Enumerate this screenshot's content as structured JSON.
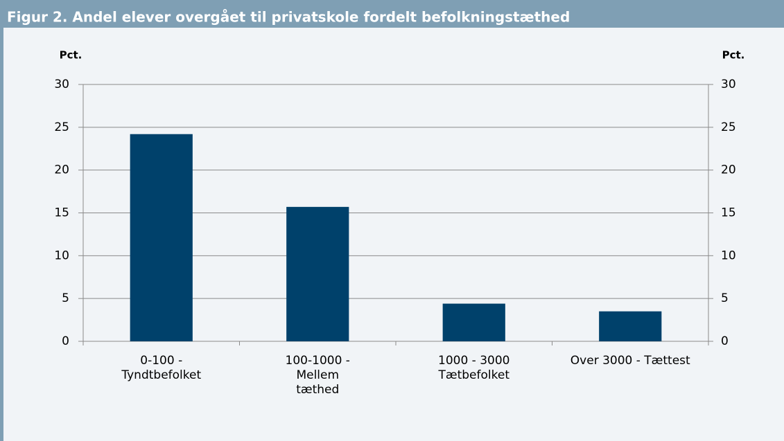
{
  "chart_data": {
    "type": "bar",
    "title": "Figur 2. Andel elever overgået til privatskole fordelt befolkningstæthed",
    "ylabel": "Pct.",
    "y2label": "Pct.",
    "categories": [
      [
        "0-100 -",
        "Tyndtbefolket"
      ],
      [
        "100-1000 -",
        "Mellem",
        "tæthed"
      ],
      [
        "1000 - 3000",
        "Tætbefolket"
      ],
      [
        "Over 3000 - Tættest"
      ]
    ],
    "values": [
      24.2,
      15.7,
      4.4,
      3.5
    ],
    "color": "#00416b",
    "ylim": [
      0,
      30
    ],
    "yticks": [
      0,
      5,
      10,
      15,
      20,
      25,
      30
    ],
    "y2lim": [
      0,
      30
    ],
    "y2ticks": [
      0,
      5,
      10,
      15,
      20,
      25,
      30
    ],
    "grid": true
  }
}
